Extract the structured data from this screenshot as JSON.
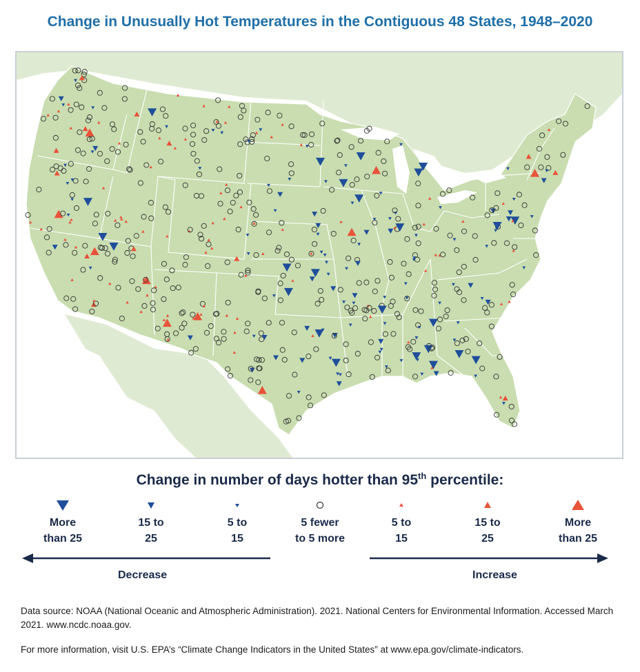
{
  "title": "Change in Unusually Hot Temperatures in the Contiguous 48 States, 1948–2020",
  "legend": {
    "title_main": "Change in number of days hotter than 95",
    "title_sup": "th",
    "title_end": " percentile:",
    "items": [
      {
        "label": "More\nthan 25",
        "symbol": "decrease-large-triangle",
        "color": "#1f4e9a"
      },
      {
        "label": "15 to\n25",
        "symbol": "decrease-medium-triangle",
        "color": "#1f4e9a"
      },
      {
        "label": "5 to\n15",
        "symbol": "decrease-small-triangle",
        "color": "#1f4e9a"
      },
      {
        "label": "5 fewer\nto 5 more",
        "symbol": "no-change-circle",
        "color": "#333333"
      },
      {
        "label": "5 to\n15",
        "symbol": "increase-small-triangle",
        "color": "#e8533a"
      },
      {
        "label": "15 to\n25",
        "symbol": "increase-medium-triangle",
        "color": "#e8533a"
      },
      {
        "label": "More\nthan 25",
        "symbol": "increase-large-triangle",
        "color": "#e8533a"
      }
    ],
    "decrease_label": "Decrease",
    "increase_label": "Increase"
  },
  "source": "Data source: NOAA (National Oceanic and Atmospheric Administration). 2021. National Centers for Environmental Information. Accessed March 2021. www.ncdc.noaa.gov.",
  "more_info": "For more information, visit U.S. EPA’s “Climate Change Indicators in the United States” at www.epa.gov/climate-indicators.",
  "colors": {
    "decrease": "#1f4e9a",
    "increase": "#e8533a",
    "land": "#c9ddb0",
    "land_light": "#dfead2",
    "water": "#ffffff",
    "title": "#1f6fa8",
    "navy": "#1a2a4a"
  }
}
